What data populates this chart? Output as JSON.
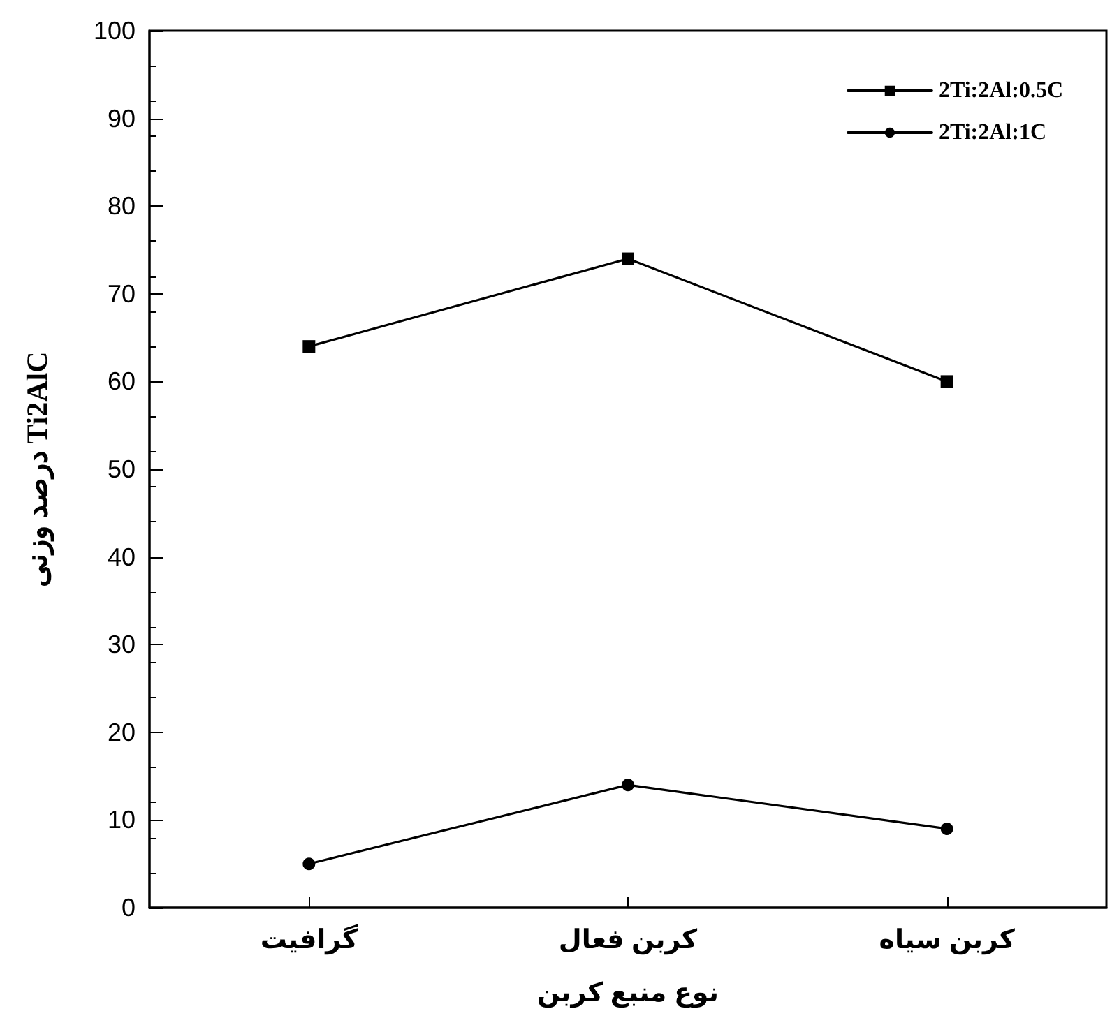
{
  "chart_data": {
    "type": "line",
    "xlabel": "نوع منبع کربن",
    "ylabel": "درصد وزنی Ti2AlC",
    "categories": [
      "گرافیت",
      "کربن فعال",
      "کربن سیاه"
    ],
    "series": [
      {
        "name": "2Ti:2Al:0.5C",
        "color": "#000000",
        "marker": "square",
        "values": [
          64,
          74,
          60
        ]
      },
      {
        "name": "2Ti:2Al:1C",
        "color": "#000000",
        "marker": "circle",
        "values": [
          5,
          14,
          9
        ]
      }
    ],
    "ylim": [
      0,
      100
    ],
    "yticks": [
      0,
      10,
      20,
      30,
      40,
      50,
      60,
      70,
      80,
      90,
      100
    ],
    "grid": false,
    "legend": "top right",
    "line_style": "solid"
  }
}
